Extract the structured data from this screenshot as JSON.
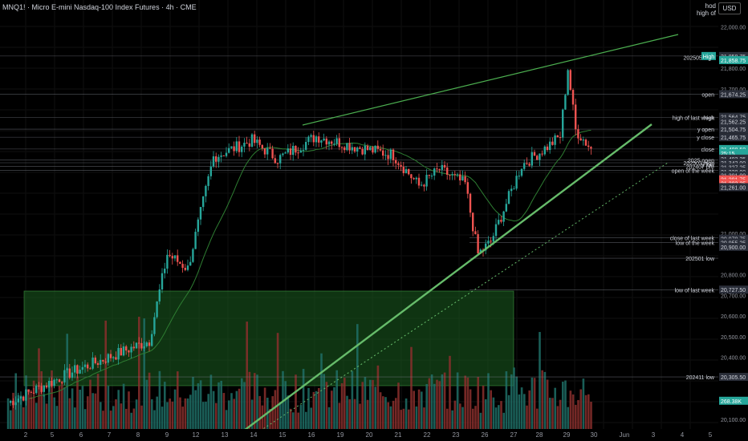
{
  "header": {
    "title": "MNQ1! · Micro E-mini Nasdaq-100 Index Futures · 4h · CME",
    "hod_label": "hod",
    "high_of_label": "high of",
    "currency": "USD"
  },
  "colors": {
    "bull": "#26a69a",
    "bear": "#ef5350",
    "trend": "#4caf50",
    "zone_fill": "#1b5e20",
    "level_line": "#787b86",
    "ma": "#4caf50",
    "background": "#000000"
  },
  "chart_data": {
    "type": "candlestick",
    "ylim": [
      20050,
      22080
    ],
    "y_ticks": [
      "22,000.00",
      "21,800.00",
      "21,700.00",
      "21,000.00",
      "20,800.00",
      "20,700.00",
      "20,600.00",
      "20,500.00",
      "20,400.00",
      "20,200.00",
      "20,100.00"
    ],
    "x_tick_labels": [
      "2",
      "5",
      "6",
      "7",
      "8",
      "9",
      "12",
      "13",
      "14",
      "15",
      "16",
      "19",
      "20",
      "21",
      "22",
      "23",
      "26",
      "27",
      "28",
      "29",
      "30",
      "Jun",
      "3",
      "4",
      "5"
    ],
    "level_labels": [
      {
        "text": "High",
        "price": 21858.75
      },
      {
        "text": "202505 high",
        "price": 21853
      },
      {
        "text": "open",
        "price": 21674.25
      },
      {
        "text": "high",
        "price": 21562.25
      },
      {
        "text": "high of last week",
        "price": 21562.25
      },
      {
        "text": "y open",
        "price": 21504.75
      },
      {
        "text": "y close",
        "price": 21465.75
      },
      {
        "text": "close",
        "price": 21408.5
      },
      {
        "text": "2025 open",
        "price": 21355
      },
      {
        "text": "202503 high",
        "price": 21342
      },
      {
        "text": "y low",
        "price": 21336
      },
      {
        "text": "202407 pre",
        "price": 21324
      },
      {
        "text": "open of the week",
        "price": 21305
      },
      {
        "text": "close of last week",
        "price": 20978.75
      },
      {
        "text": "low of the week",
        "price": 20955.25
      },
      {
        "text": "202501 low",
        "price": 20880
      },
      {
        "text": "low of last week",
        "price": 20727.5
      },
      {
        "text": "202411 low",
        "price": 20305.5
      }
    ],
    "price_tags": [
      {
        "text": "21,858.75",
        "price": 21858.75,
        "style": "gray"
      },
      {
        "text": "21,858.75",
        "price": 21839,
        "style": "green"
      },
      {
        "text": "21,674.25",
        "price": 21674.25,
        "style": "gray"
      },
      {
        "text": "21,564.75",
        "price": 21564.75,
        "style": "gray"
      },
      {
        "text": "21,562.25",
        "price": 21541,
        "style": "gray"
      },
      {
        "text": "21,504.75",
        "price": 21504.75,
        "style": "gray"
      },
      {
        "text": "21,465.75",
        "price": 21465.75,
        "style": "gray"
      },
      {
        "text": "21,408.50",
        "price": 21408.5,
        "style": "green"
      },
      {
        "text": "25:15",
        "price": 21389,
        "style": "green"
      },
      {
        "text": "21,402.25",
        "price": 21362,
        "style": "gray"
      },
      {
        "text": "21,342.00",
        "price": 21342,
        "style": "gray"
      },
      {
        "text": "21,327.25",
        "price": 21321,
        "style": "gray"
      },
      {
        "text": "21,320.00",
        "price": 21300,
        "style": "gray"
      },
      {
        "text": "21,301.00",
        "price": 21281,
        "style": "gray"
      },
      {
        "text": "21,291.75",
        "price": 21262,
        "style": "red"
      },
      {
        "text": "21,283.25",
        "price": 21243,
        "style": "red"
      },
      {
        "text": "21,261.00",
        "price": 21224,
        "style": "gray"
      },
      {
        "text": "20,978.75",
        "price": 20975,
        "style": "gray"
      },
      {
        "text": "20,955.25",
        "price": 20956,
        "style": "gray"
      },
      {
        "text": "20,900.00",
        "price": 20935,
        "style": "gray"
      },
      {
        "text": "20,727.50",
        "price": 20728,
        "style": "gray"
      },
      {
        "text": "20,305.50",
        "price": 20305.5,
        "style": "gray"
      },
      {
        "text": "268.38K",
        "price": 20190,
        "style": "green"
      }
    ],
    "volume_label": "268.38K"
  }
}
